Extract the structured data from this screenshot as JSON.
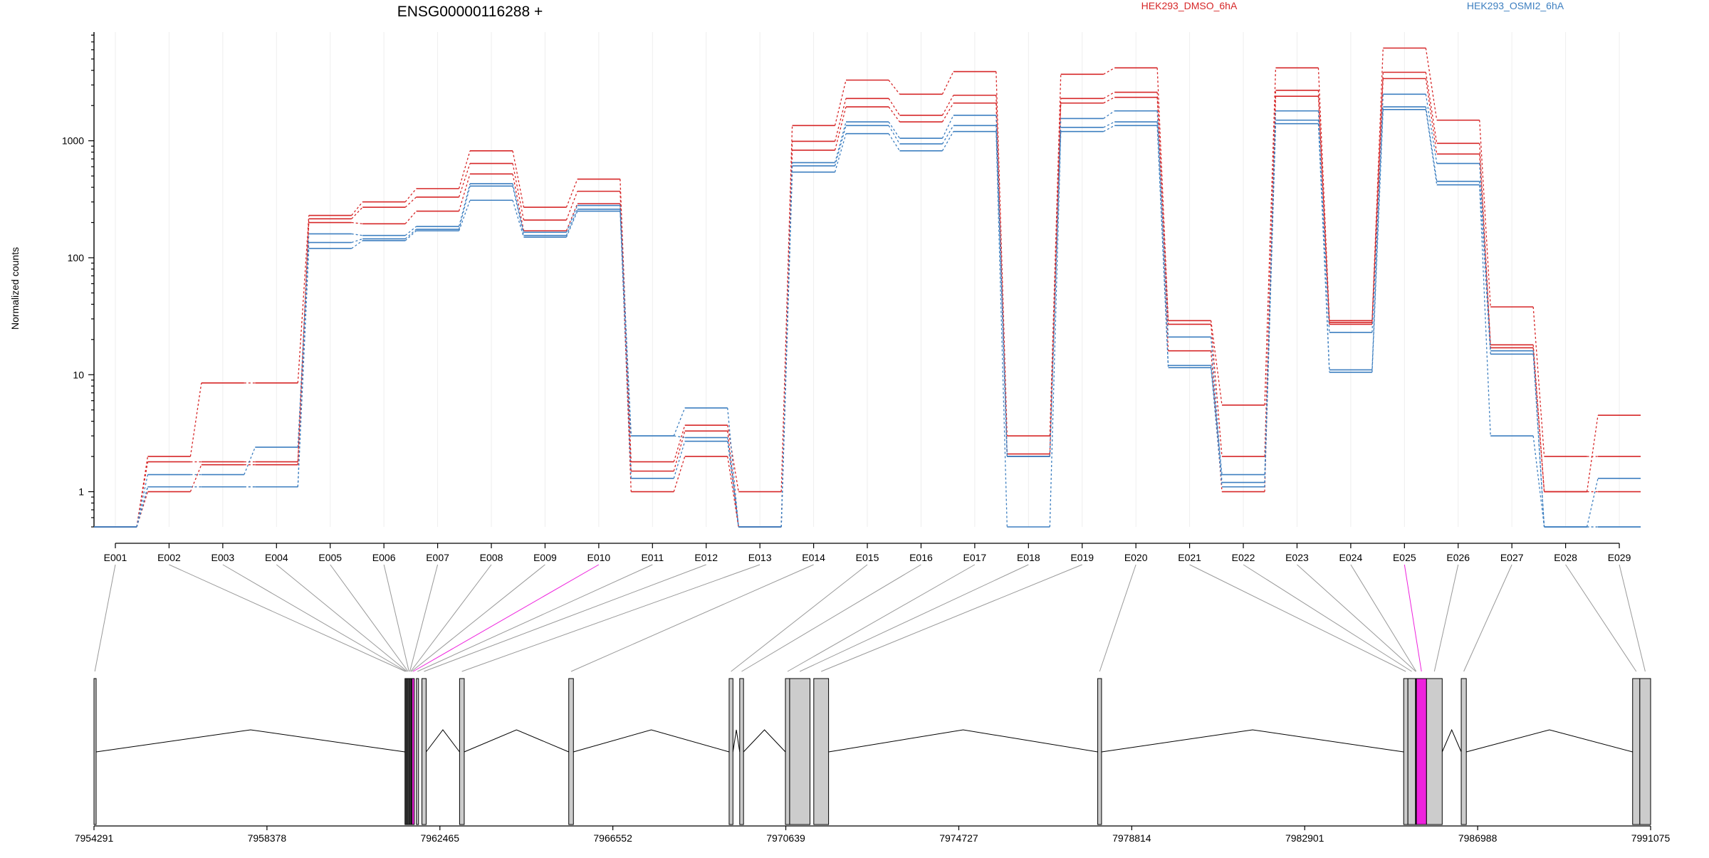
{
  "chart_data": {
    "type": "line",
    "title": "ENSG00000116288 +",
    "ylabel": "Normalized counts",
    "xlabel": "",
    "y_scale": "log",
    "ylim": [
      0.5,
      8500
    ],
    "y_ticks": [
      1,
      10,
      100,
      1000
    ],
    "y_tick_labels": [
      "1",
      "10",
      "100",
      "1000"
    ],
    "grid": "vertical",
    "legend_placement": "top",
    "categories": [
      "E001",
      "E002",
      "E003",
      "E004",
      "E005",
      "E006",
      "E007",
      "E008",
      "E009",
      "E010",
      "E011",
      "E012",
      "E013",
      "E014",
      "E015",
      "E016",
      "E017",
      "E018",
      "E019",
      "E020",
      "E021",
      "E022",
      "E023",
      "E024",
      "E025",
      "E026",
      "E027",
      "E028",
      "E029"
    ],
    "groups": [
      {
        "name": "HEK293_DMSO_6hA",
        "color": "#d62728"
      },
      {
        "name": "HEK293_OSMI2_6hA",
        "color": "#3d7fc0"
      }
    ],
    "series": [
      {
        "group": "HEK293_DMSO_6hA",
        "values": [
          0.5,
          2.0,
          8.5,
          8.5,
          230,
          300,
          390,
          820,
          270,
          470,
          1.8,
          3.7,
          1.0,
          1350,
          3300,
          2500,
          3900,
          3.0,
          3700,
          4200,
          29,
          5.5,
          4200,
          29,
          6200,
          1500,
          38,
          2.0,
          2.0
        ]
      },
      {
        "group": "HEK293_DMSO_6hA",
        "values": [
          0.5,
          1.8,
          1.8,
          1.8,
          215,
          270,
          330,
          640,
          210,
          370,
          1.5,
          3.3,
          0.5,
          990,
          2300,
          1650,
          2450,
          2.1,
          2300,
          2600,
          27,
          2.0,
          2700,
          28,
          3850,
          950,
          18,
          1.0,
          4.5
        ]
      },
      {
        "group": "HEK293_DMSO_6hA",
        "values": [
          0.5,
          1.0,
          1.7,
          1.7,
          200,
          195,
          250,
          520,
          170,
          290,
          1.0,
          2.0,
          0.5,
          830,
          1950,
          1450,
          2100,
          2.0,
          2100,
          2350,
          16,
          1.0,
          2400,
          27,
          3400,
          770,
          17,
          1.0,
          1.0
        ]
      },
      {
        "group": "HEK293_OSMI2_6hA",
        "values": [
          0.5,
          1.4,
          1.4,
          2.4,
          160,
          155,
          185,
          430,
          165,
          280,
          3.0,
          5.2,
          0.5,
          650,
          1450,
          1050,
          1650,
          2.0,
          1550,
          1800,
          21,
          1.2,
          1800,
          11,
          2500,
          640,
          16,
          0.5,
          0.5
        ]
      },
      {
        "group": "HEK293_OSMI2_6hA",
        "values": [
          0.5,
          1.1,
          1.1,
          1.1,
          135,
          145,
          175,
          410,
          155,
          260,
          3.0,
          2.9,
          0.5,
          610,
          1350,
          940,
          1350,
          2.0,
          1300,
          1450,
          12,
          1.4,
          1500,
          23,
          1950,
          450,
          15,
          0.5,
          1.3
        ]
      },
      {
        "group": "HEK293_OSMI2_6hA",
        "values": [
          0.5,
          1.1,
          1.1,
          1.1,
          120,
          140,
          170,
          310,
          150,
          250,
          1.3,
          2.7,
          0.5,
          540,
          1150,
          820,
          1200,
          0.5,
          1200,
          1350,
          11.5,
          1.1,
          1400,
          10.5,
          1850,
          420,
          3.0,
          0.5,
          0.5
        ]
      }
    ],
    "gene_model": {
      "coordinate_ticks": [
        7954291,
        7958378,
        7962465,
        7966552,
        7970639,
        7974727,
        7978814,
        7982901,
        7986988,
        7991075
      ],
      "coordinate_tick_labels": [
        "7954291",
        "7958378",
        "7962465",
        "7966552",
        "7970639",
        "7974727",
        "7978814",
        "7982901",
        "7986988",
        "7991075"
      ],
      "start": 7954291,
      "end": 7991075,
      "highlight_color": "#ee22dd",
      "highlighted_exons": [
        "E010",
        "E025"
      ],
      "exons": [
        {
          "id": "E001",
          "start": 7954291,
          "end": 7954330
        },
        {
          "id": "E002",
          "start": 7961640,
          "end": 7961660
        },
        {
          "id": "E003",
          "start": 7961660,
          "end": 7961680
        },
        {
          "id": "E004",
          "start": 7961680,
          "end": 7961700
        },
        {
          "id": "E005",
          "start": 7961700,
          "end": 7961725
        },
        {
          "id": "E006",
          "start": 7961725,
          "end": 7961745
        },
        {
          "id": "E007",
          "start": 7961745,
          "end": 7961765
        },
        {
          "id": "E008",
          "start": 7961765,
          "end": 7961785
        },
        {
          "id": "E009",
          "start": 7961785,
          "end": 7961805
        },
        {
          "id": "E010",
          "start": 7961805,
          "end": 7961860
        },
        {
          "id": "E011",
          "start": 7961910,
          "end": 7961960
        },
        {
          "id": "E012",
          "start": 7962040,
          "end": 7962140
        },
        {
          "id": "E013",
          "start": 7962930,
          "end": 7963040
        },
        {
          "id": "E014",
          "start": 7965510,
          "end": 7965620
        },
        {
          "id": "E015",
          "start": 7969300,
          "end": 7969390
        },
        {
          "id": "E016",
          "start": 7969550,
          "end": 7969640
        },
        {
          "id": "E017",
          "start": 7970630,
          "end": 7970730
        },
        {
          "id": "E018",
          "start": 7970730,
          "end": 7971210
        },
        {
          "id": "E019",
          "start": 7971300,
          "end": 7971650
        },
        {
          "id": "E020",
          "start": 7978010,
          "end": 7978100
        },
        {
          "id": "E021",
          "start": 7985240,
          "end": 7985340
        },
        {
          "id": "E022",
          "start": 7985340,
          "end": 7985520
        },
        {
          "id": "E023",
          "start": 7985520,
          "end": 7985530
        },
        {
          "id": "E024",
          "start": 7985530,
          "end": 7985540
        },
        {
          "id": "E025",
          "start": 7985540,
          "end": 7985780
        },
        {
          "id": "E026",
          "start": 7985780,
          "end": 7986150
        },
        {
          "id": "E027",
          "start": 7986600,
          "end": 7986720
        },
        {
          "id": "E028",
          "start": 7990650,
          "end": 7990820
        },
        {
          "id": "E029",
          "start": 7990820,
          "end": 7991075
        }
      ]
    }
  }
}
